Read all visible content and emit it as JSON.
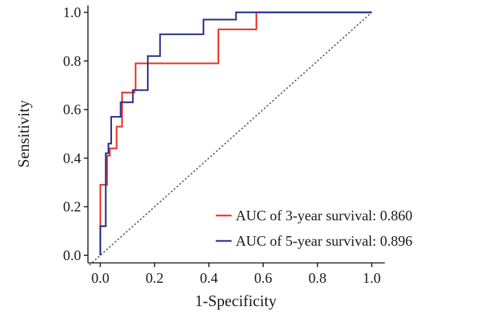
{
  "chart_data": {
    "type": "line",
    "xlabel": "1-Specificity",
    "ylabel": "Sensitivity",
    "xlim": [
      0.0,
      1.0
    ],
    "ylim": [
      0.0,
      1.0
    ],
    "x_ticks": [
      "0.0",
      "0.2",
      "0.4",
      "0.6",
      "0.8",
      "1.0"
    ],
    "y_ticks": [
      "0.0",
      "0.2",
      "0.4",
      "0.6",
      "0.8",
      "1.0"
    ],
    "x_tick_values": [
      0.0,
      0.2,
      0.4,
      0.6,
      0.8,
      1.0
    ],
    "y_tick_values": [
      0.0,
      0.2,
      0.4,
      0.6,
      0.8,
      1.0
    ],
    "grid": false,
    "legend_position": "bottom-right",
    "series": [
      {
        "name": "AUC of 3-year survival: 0.860",
        "color": "#e8392f",
        "x": [
          0.0,
          0.0,
          0.0,
          0.025,
          0.025,
          0.035,
          0.035,
          0.06,
          0.06,
          0.08,
          0.08,
          0.125,
          0.125,
          0.13,
          0.13,
          0.435,
          0.435,
          0.575,
          0.575,
          1.0
        ],
        "y": [
          0.0,
          0.12,
          0.29,
          0.29,
          0.41,
          0.41,
          0.44,
          0.44,
          0.53,
          0.53,
          0.67,
          0.67,
          0.68,
          0.68,
          0.79,
          0.79,
          0.93,
          0.93,
          1.0,
          1.0
        ]
      },
      {
        "name": "AUC of 5-year survival: 0.896",
        "color": "#2e3590",
        "x": [
          0.0,
          0.0,
          0.0,
          0.02,
          0.02,
          0.03,
          0.03,
          0.04,
          0.04,
          0.075,
          0.075,
          0.12,
          0.12,
          0.175,
          0.175,
          0.22,
          0.22,
          0.38,
          0.38,
          0.5,
          0.5,
          1.0
        ],
        "y": [
          0.0,
          0.0,
          0.12,
          0.12,
          0.42,
          0.42,
          0.46,
          0.46,
          0.57,
          0.57,
          0.63,
          0.63,
          0.68,
          0.68,
          0.82,
          0.82,
          0.91,
          0.91,
          0.97,
          0.97,
          1.0,
          1.0
        ]
      }
    ],
    "reference_line": {
      "name": "diagonal-reference",
      "x": [
        -0.04,
        1.0
      ],
      "y": [
        -0.04,
        1.0
      ],
      "color": "#555555"
    }
  }
}
